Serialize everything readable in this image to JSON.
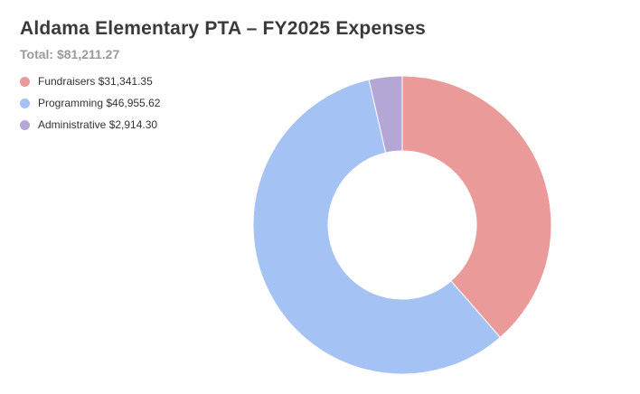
{
  "title": "Aldama Elementary PTA – FY2025 Expenses",
  "subtitle": "Total: $81,211.27",
  "legend": [
    {
      "label": "Fundraisers $31,341.35",
      "color": "#ea9a99"
    },
    {
      "label": "Programming $46,955.62",
      "color": "#a4c2f4"
    },
    {
      "label": "Administrative $2,914.30",
      "color": "#b4a7d6"
    }
  ],
  "chart_data": {
    "type": "pie",
    "variant": "donut",
    "title": "Aldama Elementary PTA – FY2025 Expenses",
    "subtitle": "Total: $81,211.27",
    "total": 81211.27,
    "categories": [
      "Fundraisers",
      "Programming",
      "Administrative"
    ],
    "values": [
      31341.35,
      46955.62,
      2914.3
    ],
    "colors": [
      "#ea9a99",
      "#a4c2f4",
      "#b4a7d6"
    ],
    "legend_position": "top-left"
  }
}
